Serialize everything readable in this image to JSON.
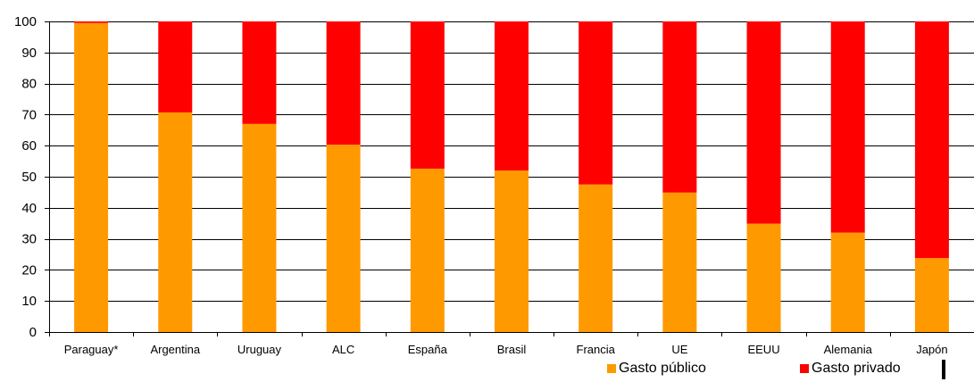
{
  "chart_data": {
    "type": "bar",
    "stacked": true,
    "categories": [
      "Paraguay*",
      "Argentina",
      "Uruguay",
      "ALC",
      "España",
      "Brasil",
      "Francia",
      "UE",
      "EEUU",
      "Alemania",
      "Japón"
    ],
    "series": [
      {
        "name": "Gasto público",
        "color": "#FF9900",
        "values": [
          99.5,
          70.7,
          67,
          60.3,
          52.6,
          52,
          47.5,
          44.9,
          34.9,
          32,
          23.8
        ]
      },
      {
        "name": "Gasto privado",
        "color": "#FF0000",
        "values": [
          0.5,
          29.3,
          33,
          39.7,
          47.4,
          48,
          52.5,
          55.1,
          65.1,
          68,
          76.2
        ]
      }
    ],
    "ylim": [
      0,
      100
    ],
    "yticks": [
      0,
      10,
      20,
      30,
      40,
      50,
      60,
      70,
      80,
      90,
      100
    ],
    "ytick_labels": [
      "0",
      "10",
      "20",
      "30",
      "40",
      "50",
      "60",
      "70",
      "80",
      "90",
      "100"
    ],
    "grid": true,
    "legend_position": "bottom-right",
    "title": "",
    "xlabel": "",
    "ylabel": ""
  }
}
